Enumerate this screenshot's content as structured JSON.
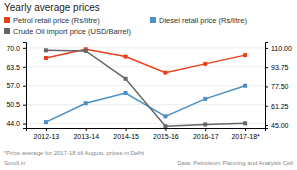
{
  "chart_data": {
    "type": "line",
    "title": "Yearly average prices",
    "categories": [
      "2012-13",
      "2013-14",
      "2014-15",
      "2015-16",
      "2016-17",
      "2017-18*"
    ],
    "series": [
      {
        "name": "Petrol retail price (Rs/litre)",
        "color": "#e8401c",
        "marker": "square",
        "values": [
          66.5,
          69.5,
          67.0,
          61.5,
          64.5,
          67.5
        ]
      },
      {
        "name": "Diesel retail price (Rs/litre)",
        "color": "#4a90c4",
        "marker": "square",
        "values": [
          44.5,
          51.0,
          54.5,
          46.5,
          52.5,
          57.0
        ]
      },
      {
        "name": "Crude Oil import price (USD/Barrel)",
        "color": "#666666",
        "marker": "square",
        "axis": "y2",
        "values": [
          108.0,
          107.5,
          84.0,
          44.0,
          45.5,
          46.5
        ]
      }
    ],
    "ylim": [
      42.5,
      72.0
    ],
    "yticks": [
      {
        "value": 44.0,
        "label": "44.0"
      },
      50.5,
      {
        "value": 57.0,
        "label": "57.0"
      },
      63.5,
      {
        "value": 70.0,
        "label": "70.0"
      }
    ],
    "y2lim": [
      42.5,
      115.0
    ],
    "y2ticks": [
      {
        "value": 45.0,
        "label": "45.00"
      },
      {
        "value": 61.25,
        "label": "61.25"
      },
      {
        "value": 77.5,
        "label": "77.50"
      },
      {
        "value": 93.75,
        "label": "93.75"
      },
      {
        "value": 110.0,
        "label": "110.00"
      }
    ],
    "grid": true,
    "legend": "top-left",
    "annotations": [
      "*Price average for 2017-18 till August, prices in Delhi",
      "Scroll.in",
      "Data: Petroleum Planning and Analysis Cell"
    ]
  }
}
